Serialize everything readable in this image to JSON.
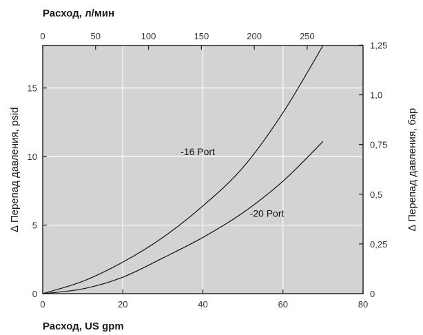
{
  "chart_data": {
    "type": "line",
    "xlabel": "Расход, US gpm",
    "ylabel": "∆ Перепад давления, psid",
    "xlabel_top": "Расход, л/мин",
    "ylabel_right": "∆ Перепад давления, бар",
    "xlim": [
      0,
      80
    ],
    "ylim": [
      0,
      18.1
    ],
    "xlim_top": [
      0,
      302.8
    ],
    "ylim_right": [
      0,
      1.248
    ],
    "x_ticks": [
      "0",
      "20",
      "40",
      "60",
      "80"
    ],
    "y_ticks": [
      "0",
      "5",
      "10",
      "15"
    ],
    "x_ticks_top": [
      "0",
      "50",
      "100",
      "150",
      "200",
      "250"
    ],
    "y_ticks_right": [
      "0",
      "0,25",
      "0,5",
      "0,75",
      "1,0",
      "1,25"
    ],
    "grid": true,
    "series": [
      {
        "name": "-16 Port",
        "x": [
          0,
          10,
          20,
          30,
          40,
          50,
          60,
          70
        ],
        "y": [
          0,
          0.9,
          2.3,
          4.1,
          6.4,
          9.2,
          13.2,
          18.1
        ]
      },
      {
        "name": "-20 Port",
        "x": [
          0,
          10,
          20,
          30,
          40,
          50,
          60,
          70
        ],
        "y": [
          0,
          0.35,
          1.2,
          2.6,
          4.1,
          5.9,
          8.2,
          11.1
        ]
      }
    ]
  }
}
